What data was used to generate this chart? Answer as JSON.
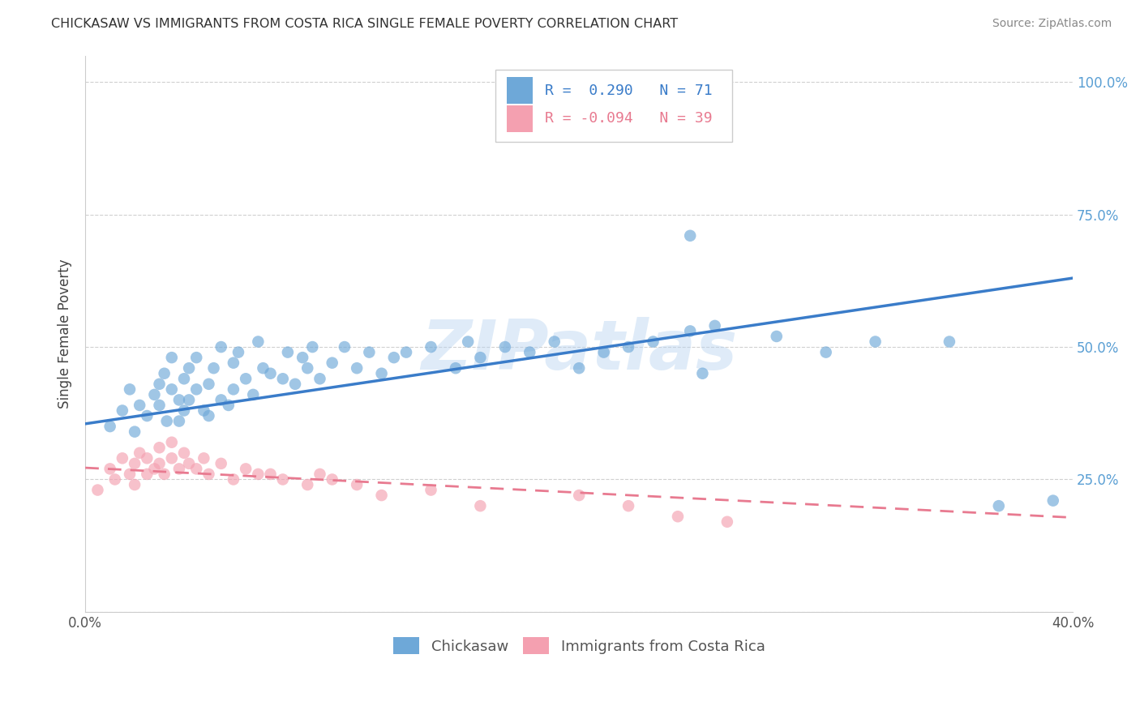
{
  "title": "CHICKASAW VS IMMIGRANTS FROM COSTA RICA SINGLE FEMALE POVERTY CORRELATION CHART",
  "source": "Source: ZipAtlas.com",
  "ylabel": "Single Female Poverty",
  "xlim": [
    0.0,
    0.4
  ],
  "ylim": [
    0.0,
    1.05
  ],
  "blue_R": 0.29,
  "blue_N": 71,
  "pink_R": -0.094,
  "pink_N": 39,
  "blue_color": "#6ea8d8",
  "pink_color": "#f4a0b0",
  "blue_line_color": "#3a7cc9",
  "pink_line_color": "#e87a90",
  "tick_label_color": "#5a9fd4",
  "watermark": "ZIPatlas",
  "background_color": "#ffffff",
  "blue_scatter_x": [
    0.01,
    0.015,
    0.018,
    0.02,
    0.022,
    0.025,
    0.028,
    0.03,
    0.03,
    0.032,
    0.033,
    0.035,
    0.035,
    0.038,
    0.038,
    0.04,
    0.04,
    0.042,
    0.042,
    0.045,
    0.045,
    0.048,
    0.05,
    0.05,
    0.052,
    0.055,
    0.055,
    0.058,
    0.06,
    0.06,
    0.062,
    0.065,
    0.068,
    0.07,
    0.072,
    0.075,
    0.08,
    0.082,
    0.085,
    0.088,
    0.09,
    0.092,
    0.095,
    0.1,
    0.105,
    0.11,
    0.115,
    0.12,
    0.125,
    0.13,
    0.14,
    0.15,
    0.155,
    0.16,
    0.17,
    0.18,
    0.19,
    0.2,
    0.21,
    0.22,
    0.23,
    0.245,
    0.25,
    0.255,
    0.28,
    0.3,
    0.32,
    0.35,
    0.37,
    0.392,
    0.245
  ],
  "blue_scatter_y": [
    0.35,
    0.38,
    0.42,
    0.34,
    0.39,
    0.37,
    0.41,
    0.43,
    0.39,
    0.45,
    0.36,
    0.42,
    0.48,
    0.4,
    0.36,
    0.38,
    0.44,
    0.4,
    0.46,
    0.42,
    0.48,
    0.38,
    0.37,
    0.43,
    0.46,
    0.4,
    0.5,
    0.39,
    0.42,
    0.47,
    0.49,
    0.44,
    0.41,
    0.51,
    0.46,
    0.45,
    0.44,
    0.49,
    0.43,
    0.48,
    0.46,
    0.5,
    0.44,
    0.47,
    0.5,
    0.46,
    0.49,
    0.45,
    0.48,
    0.49,
    0.5,
    0.46,
    0.51,
    0.48,
    0.5,
    0.49,
    0.51,
    0.46,
    0.49,
    0.5,
    0.51,
    0.53,
    0.45,
    0.54,
    0.52,
    0.49,
    0.51,
    0.51,
    0.2,
    0.21,
    0.71
  ],
  "pink_scatter_x": [
    0.005,
    0.01,
    0.012,
    0.015,
    0.018,
    0.02,
    0.02,
    0.022,
    0.025,
    0.025,
    0.028,
    0.03,
    0.03,
    0.032,
    0.035,
    0.035,
    0.038,
    0.04,
    0.042,
    0.045,
    0.048,
    0.05,
    0.055,
    0.06,
    0.065,
    0.07,
    0.075,
    0.08,
    0.09,
    0.095,
    0.1,
    0.11,
    0.12,
    0.14,
    0.16,
    0.2,
    0.22,
    0.24,
    0.26
  ],
  "pink_scatter_y": [
    0.23,
    0.27,
    0.25,
    0.29,
    0.26,
    0.24,
    0.28,
    0.3,
    0.26,
    0.29,
    0.27,
    0.28,
    0.31,
    0.26,
    0.29,
    0.32,
    0.27,
    0.3,
    0.28,
    0.27,
    0.29,
    0.26,
    0.28,
    0.25,
    0.27,
    0.26,
    0.26,
    0.25,
    0.24,
    0.26,
    0.25,
    0.24,
    0.22,
    0.23,
    0.2,
    0.22,
    0.2,
    0.18,
    0.17
  ],
  "blue_line_x": [
    0.0,
    0.4
  ],
  "blue_line_y": [
    0.355,
    0.63
  ],
  "pink_line_x": [
    0.0,
    0.4
  ],
  "pink_line_y": [
    0.272,
    0.178
  ]
}
